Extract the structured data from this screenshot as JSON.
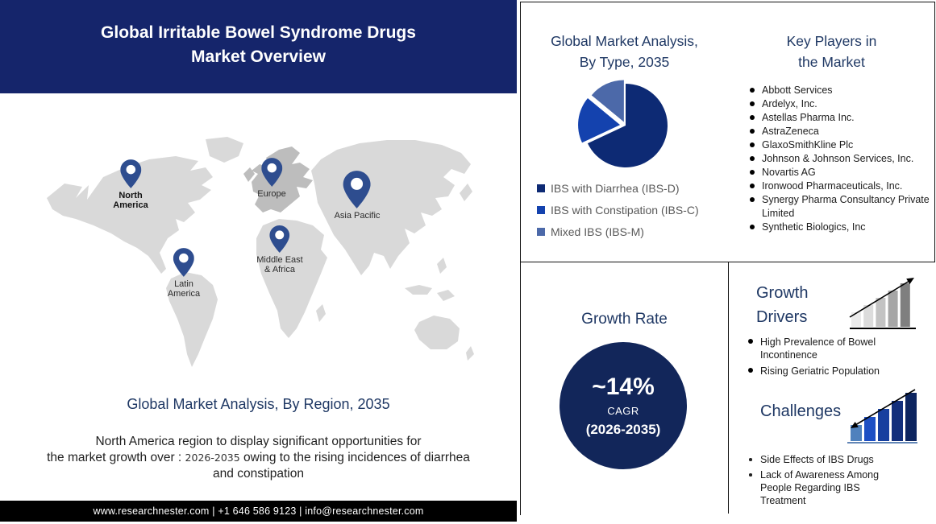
{
  "header": {
    "title": "Global Irritable Bowel Syndrome Drugs\nMarket Overview"
  },
  "map": {
    "pins": [
      {
        "label": "North\nAmerica"
      },
      {
        "label": "Europe"
      },
      {
        "label": "Asia Pacific"
      },
      {
        "label": "Middle East\n& Africa"
      },
      {
        "label": "Latin\nAmerica"
      }
    ],
    "caption": "Global Market Analysis, By Region, 2035",
    "description": {
      "line1": "North America region to display significant opportunities for",
      "line2_pre": "the market growth over :",
      "years": "2026-2035",
      "line2_post": "owing to the rising incidences of diarrhea",
      "line3": "and constipation"
    }
  },
  "footer": {
    "contact": "www.researchnester.com | +1 646 586 9123 | info@researchnester.com"
  },
  "chart_data": {
    "type": "pie",
    "title": "Global Market Analysis,\nBy Type, 2035",
    "slices": [
      {
        "label": "IBS with Diarrhea (IBS-D)",
        "value": 68,
        "color": "#0d2a74"
      },
      {
        "label": "IBS with Constipation (IBS-C)",
        "value": 18,
        "color": "#1442ae"
      },
      {
        "label": "Mixed IBS (IBS-M)",
        "value": 14,
        "color": "#4c69a9"
      }
    ],
    "start_angle_deg": 0,
    "legend_position": "bottom-left"
  },
  "key_players": {
    "title": "Key Players in\nthe Market",
    "items": [
      "Abbott Services",
      "Ardelyx, Inc.",
      "Astellas Pharma Inc.",
      "AstraZeneca",
      "GlaxoSmithKline Plc",
      "Johnson & Johnson Services, Inc.",
      "Novartis AG",
      "Ironwood Pharmaceuticals, Inc.",
      "Synergy Pharma Consultancy Private Limited",
      "Synthetic Biologics, Inc"
    ]
  },
  "growth_rate": {
    "title": "Growth Rate",
    "value": "~14%",
    "metric": "CAGR",
    "period": "(2026-2035)"
  },
  "growth_drivers": {
    "title": "Growth\nDrivers",
    "items": [
      "High Prevalence of Bowel Incontinence",
      "Rising Geriatric Population"
    ]
  },
  "challenges": {
    "title": "Challenges",
    "items": [
      "Side Effects of IBS Drugs",
      "Lack of Awareness Among People Regarding IBS Treatment"
    ]
  },
  "colors": {
    "brand_navy": "#15256b",
    "heading_navy": "#1f3864",
    "growth_circle_navy": "#12265a",
    "legend_text_gray": "#595959",
    "map_gray": "#d9d9d9",
    "map_europe_gray": "#bdbdbd",
    "pin_navy": "#2e4d8f"
  }
}
